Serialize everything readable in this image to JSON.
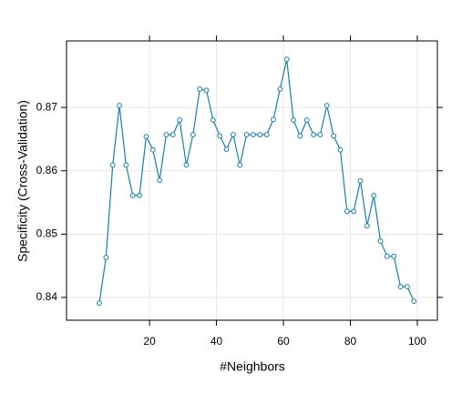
{
  "chart_data": {
    "type": "line",
    "xlabel": "#Neighbors",
    "ylabel": "Specificity (Cross-Validation)",
    "x": [
      5,
      7,
      9,
      11,
      13,
      15,
      17,
      19,
      21,
      23,
      25,
      27,
      29,
      31,
      33,
      35,
      37,
      39,
      41,
      43,
      45,
      47,
      49,
      51,
      53,
      55,
      57,
      59,
      61,
      63,
      65,
      67,
      69,
      71,
      73,
      75,
      77,
      79,
      81,
      83,
      85,
      87,
      89,
      91,
      93,
      95,
      97,
      99
    ],
    "series": [
      {
        "name": "Specificity",
        "color": "#1580b0",
        "values": [
          0.8391,
          0.8463,
          0.8609,
          0.8703,
          0.8609,
          0.8561,
          0.8561,
          0.8654,
          0.8633,
          0.8585,
          0.8657,
          0.8657,
          0.868,
          0.8609,
          0.8657,
          0.8729,
          0.8727,
          0.868,
          0.8655,
          0.8634,
          0.8657,
          0.8609,
          0.8657,
          0.8657,
          0.8657,
          0.8657,
          0.8681,
          0.8729,
          0.8776,
          0.868,
          0.8655,
          0.868,
          0.8657,
          0.8657,
          0.8703,
          0.8655,
          0.8633,
          0.8536,
          0.8536,
          0.8584,
          0.8513,
          0.8561,
          0.8489,
          0.8465,
          0.8465,
          0.8417,
          0.8417,
          0.8394
        ]
      }
    ],
    "xlim": [
      -4.8,
      106
    ],
    "ylim": [
      0.8364,
      0.8805
    ],
    "xticks": [
      20,
      40,
      60,
      80,
      100
    ],
    "yticks": [
      0.84,
      0.85,
      0.86,
      0.87
    ],
    "grid": true
  }
}
